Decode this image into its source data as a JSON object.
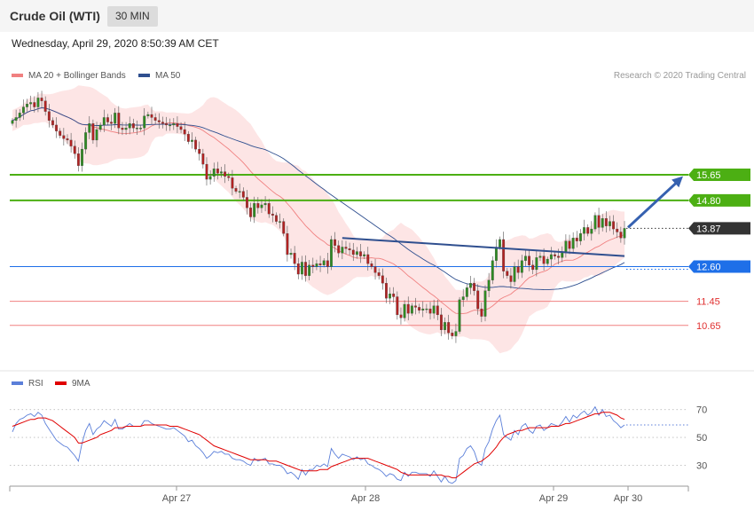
{
  "header": {
    "title": "Crude Oil (WTI)",
    "timeframe": "30 MIN",
    "datetime": "Wednesday, April 29, 2020 8:50:39 AM CET"
  },
  "legend": {
    "ma20_label": "MA 20 + Bollinger Bands",
    "ma20_color": "#f08080",
    "ma50_label": "MA 50",
    "ma50_color": "#2f4f8f",
    "credit": "Research © 2020 Trading Central"
  },
  "rsi_legend": {
    "rsi_label": "RSI",
    "rsi_color": "#5b7fd9",
    "ma_label": "9MA",
    "ma_color": "#e00000"
  },
  "chart_data": [
    {
      "type": "candlestick",
      "title": "Crude Oil (WTI)",
      "interval": "30 MIN",
      "x_labels": [
        "Apr 27",
        "Apr 28",
        "Apr 29",
        "Apr 30"
      ],
      "ylim": [
        9.2,
        18.8
      ],
      "levels": [
        {
          "value": 15.65,
          "label": "15.65",
          "color": "#4caf13",
          "kind": "resistance"
        },
        {
          "value": 14.8,
          "label": "14.80",
          "color": "#4caf13",
          "kind": "resistance"
        },
        {
          "value": 13.87,
          "label": "13.87",
          "color": "#333333",
          "kind": "last-price"
        },
        {
          "value": 12.6,
          "label": "12.60",
          "color": "#1e6fe8",
          "kind": "pivot"
        },
        {
          "value": 11.45,
          "label": "11.45",
          "color": "#f08080",
          "kind": "support"
        },
        {
          "value": 10.65,
          "label": "10.65",
          "color": "#f08080",
          "kind": "support"
        }
      ],
      "close": [
        17.45,
        17.55,
        17.7,
        17.9,
        18.0,
        18.05,
        17.9,
        18.2,
        18.1,
        17.75,
        17.45,
        17.3,
        17.1,
        16.95,
        16.85,
        16.8,
        16.6,
        16.35,
        15.95,
        16.5,
        17.05,
        17.35,
        16.8,
        17.15,
        17.3,
        17.55,
        17.4,
        17.35,
        17.7,
        17.2,
        17.15,
        17.2,
        17.35,
        17.2,
        17.2,
        17.2,
        17.6,
        17.65,
        17.55,
        17.45,
        17.4,
        17.35,
        17.3,
        17.3,
        17.35,
        17.25,
        17.15,
        17.0,
        16.75,
        16.8,
        16.5,
        16.35,
        16.0,
        15.5,
        15.6,
        15.85,
        15.7,
        15.75,
        15.6,
        15.55,
        15.2,
        15.1,
        15.1,
        14.9,
        14.55,
        14.25,
        14.7,
        14.55,
        14.65,
        14.7,
        14.35,
        14.3,
        14.1,
        14.1,
        13.7,
        13.0,
        13.05,
        12.7,
        12.35,
        12.75,
        12.3,
        12.65,
        12.6,
        12.7,
        12.65,
        12.8,
        12.6,
        13.5,
        13.3,
        13.05,
        13.25,
        13.2,
        13.15,
        13.0,
        13.1,
        12.95,
        13.0,
        12.7,
        12.6,
        12.4,
        12.3,
        12.05,
        11.55,
        11.7,
        11.6,
        11.0,
        10.9,
        11.35,
        11.05,
        11.3,
        11.25,
        11.15,
        11.2,
        11.2,
        11.05,
        11.3,
        11.0,
        10.5,
        10.75,
        10.4,
        10.3,
        10.45,
        11.5,
        11.6,
        11.9,
        12.05,
        11.8,
        11.2,
        10.95,
        11.8,
        12.15,
        12.8,
        13.25,
        13.5,
        12.45,
        12.3,
        12.1,
        12.6,
        12.4,
        12.8,
        12.95,
        12.65,
        12.5,
        12.9,
        12.95,
        12.7,
        12.85,
        13.0,
        12.95,
        12.9,
        13.1,
        13.45,
        13.2,
        13.55,
        13.45,
        13.7,
        13.9,
        13.7,
        13.85,
        14.3,
        13.9,
        14.2,
        13.95,
        14.1,
        13.85,
        13.75,
        13.55,
        13.87
      ]
    },
    {
      "type": "line",
      "title": "RSI",
      "series": [
        {
          "name": "RSI",
          "values": [
            54,
            60,
            63,
            64,
            66,
            67,
            65,
            68,
            66,
            60,
            56,
            52,
            48,
            46,
            44,
            43,
            40,
            37,
            33,
            46,
            55,
            60,
            52,
            56,
            58,
            62,
            60,
            58,
            63,
            56,
            56,
            58,
            60,
            58,
            58,
            58,
            62,
            62,
            60,
            59,
            58,
            57,
            56,
            56,
            57,
            55,
            53,
            51,
            47,
            48,
            44,
            42,
            39,
            35,
            37,
            40,
            39,
            40,
            38,
            38,
            35,
            34,
            34,
            33,
            31,
            30,
            35,
            33,
            34,
            35,
            31,
            31,
            30,
            30,
            28,
            24,
            25,
            23,
            20,
            27,
            23,
            27,
            27,
            30,
            29,
            31,
            29,
            42,
            38,
            35,
            38,
            37,
            36,
            34,
            36,
            34,
            35,
            31,
            30,
            28,
            27,
            25,
            22,
            24,
            23,
            20,
            19,
            25,
            22,
            25,
            25,
            24,
            24,
            24,
            22,
            26,
            22,
            18,
            22,
            18,
            17,
            19,
            35,
            37,
            42,
            44,
            40,
            32,
            30,
            42,
            47,
            56,
            62,
            66,
            52,
            50,
            48,
            55,
            52,
            58,
            60,
            55,
            53,
            58,
            59,
            55,
            57,
            60,
            59,
            58,
            61,
            65,
            61,
            66,
            64,
            67,
            69,
            66,
            68,
            72,
            66,
            70,
            65,
            66,
            62,
            60,
            57,
            59
          ]
        },
        {
          "name": "9MA",
          "values": [
            58,
            59,
            60,
            61,
            62,
            63,
            63,
            64,
            64,
            64,
            63,
            62,
            60,
            58,
            56,
            54,
            52,
            50,
            46,
            46,
            47,
            48,
            49,
            50,
            52,
            53,
            54,
            55,
            57,
            57,
            57,
            58,
            58,
            58,
            58,
            58,
            59,
            59,
            59,
            59,
            59,
            59,
            59,
            58,
            58,
            58,
            57,
            56,
            55,
            54,
            53,
            52,
            50,
            48,
            46,
            44,
            43,
            42,
            41,
            40,
            39,
            38,
            37,
            36,
            35,
            34,
            34,
            34,
            34,
            34,
            33,
            33,
            33,
            32,
            31,
            30,
            29,
            28,
            27,
            26,
            26,
            26,
            26,
            26,
            27,
            27,
            27,
            29,
            30,
            31,
            32,
            33,
            34,
            35,
            35,
            35,
            35,
            35,
            34,
            33,
            32,
            31,
            30,
            29,
            28,
            27,
            25,
            24,
            23,
            23,
            23,
            23,
            23,
            23,
            23,
            23,
            23,
            23,
            22,
            22,
            21,
            21,
            23,
            25,
            27,
            29,
            31,
            32,
            33,
            35,
            37,
            40,
            43,
            47,
            50,
            52,
            53,
            54,
            55,
            55,
            56,
            57,
            57,
            57,
            57,
            57,
            57,
            58,
            58,
            58,
            59,
            60,
            60,
            61,
            62,
            63,
            64,
            65,
            66,
            67,
            67,
            68,
            68,
            68,
            67,
            66,
            64,
            63
          ]
        }
      ],
      "ylim": [
        15,
        80
      ],
      "ticks": [
        70,
        50,
        30
      ],
      "x_labels": [
        "Apr 27",
        "Apr 28",
        "Apr 29",
        "Apr 30"
      ]
    }
  ]
}
